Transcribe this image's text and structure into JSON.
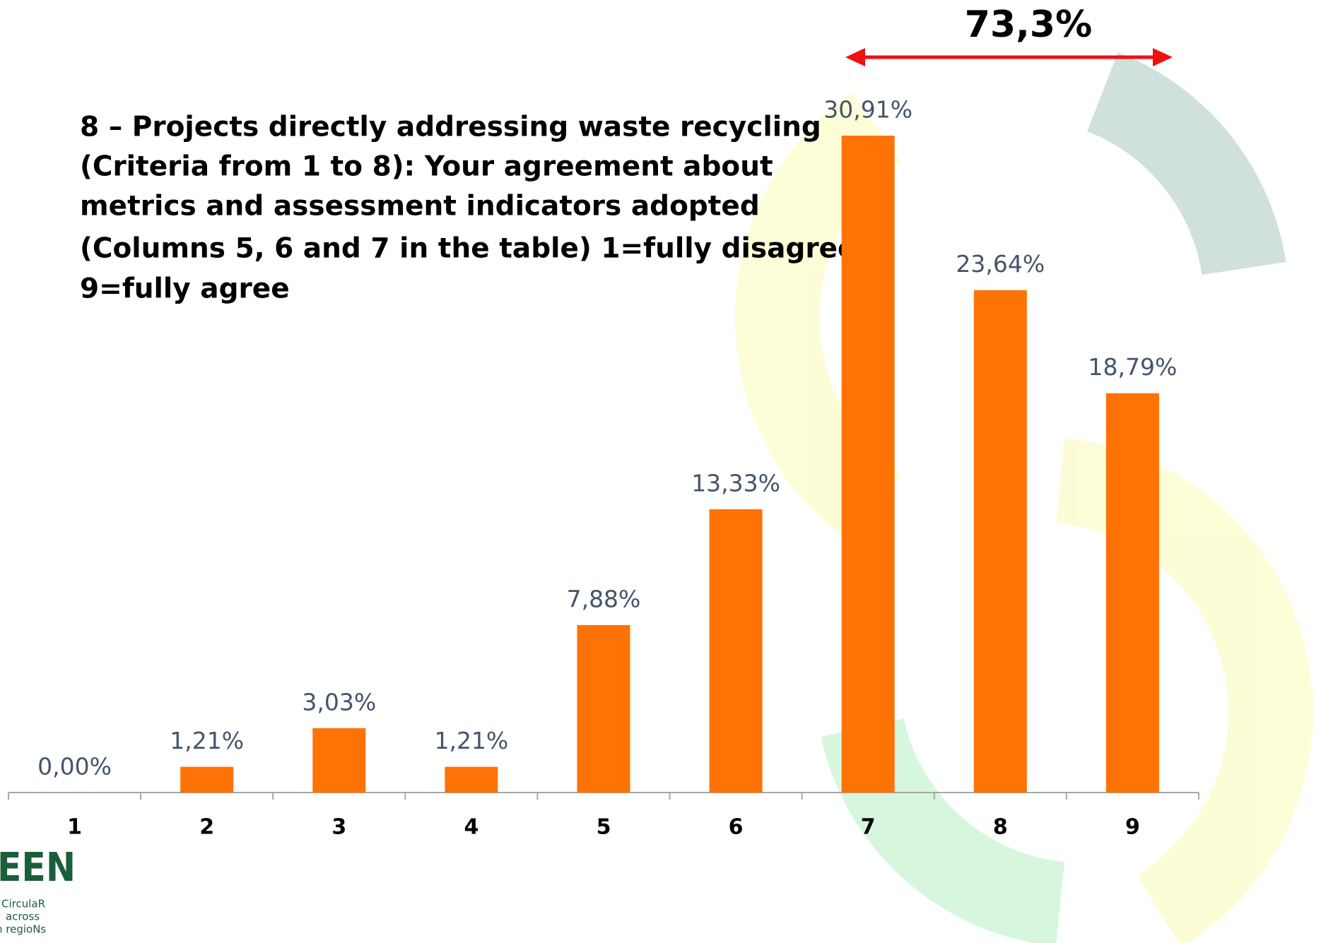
{
  "chart_data": {
    "type": "bar",
    "title": [
      "8 – Projects directly addressing waste recycling",
      "(Criteria from 1 to 8): Your agreement about",
      "metrics and assessment indicators adopted",
      "(Columns 5, 6 and 7 in the table) 1=fully disagree;",
      "9=fully agree"
    ],
    "annotation": "73,3%",
    "categories": [
      "1",
      "2",
      "3",
      "4",
      "5",
      "6",
      "7",
      "8",
      "9"
    ],
    "values": [
      0,
      1.21,
      3.03,
      1.21,
      7.88,
      13.33,
      30.91,
      23.64,
      18.79
    ],
    "value_labels": [
      "0,00%",
      "1,21%",
      "3,03%",
      "1,21%",
      "7,88%",
      "13,33%",
      "30,91%",
      "23,64%",
      "18,79%"
    ],
    "color": "#ff7306"
  },
  "logo": [
    "EEN",
    "CirculaR",
    "across",
    "n regioNs"
  ]
}
